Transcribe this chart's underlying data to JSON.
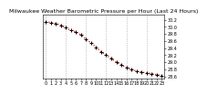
{
  "title": "Milwaukee Weather Barometric Pressure per Hour (Last 24 Hours)",
  "hours": [
    0,
    1,
    2,
    3,
    4,
    5,
    6,
    7,
    8,
    9,
    10,
    11,
    12,
    13,
    14,
    15,
    16,
    17,
    18,
    19,
    20,
    21,
    22,
    23
  ],
  "pressure": [
    30.15,
    30.12,
    30.1,
    30.05,
    29.98,
    29.9,
    29.85,
    29.78,
    29.65,
    29.55,
    29.42,
    29.3,
    29.2,
    29.1,
    29.0,
    28.92,
    28.85,
    28.8,
    28.75,
    28.72,
    28.7,
    28.68,
    28.65,
    28.62
  ],
  "line_color": "#ff0000",
  "marker_color": "#000000",
  "bg_color": "#ffffff",
  "grid_color": "#999999",
  "ylim_min": 28.55,
  "ylim_max": 30.35,
  "title_fontsize": 4.5,
  "tick_fontsize": 3.5,
  "ytick_values": [
    28.6,
    28.8,
    29.0,
    29.2,
    29.4,
    29.6,
    29.8,
    30.0,
    30.2
  ],
  "ytick_labels": [
    "28.6",
    "28.8",
    "29.0",
    "29.2",
    "29.4",
    "29.6",
    "29.8",
    "30.0",
    "30.2"
  ],
  "vgrid_hours": [
    0,
    4,
    8,
    12,
    16,
    20
  ]
}
